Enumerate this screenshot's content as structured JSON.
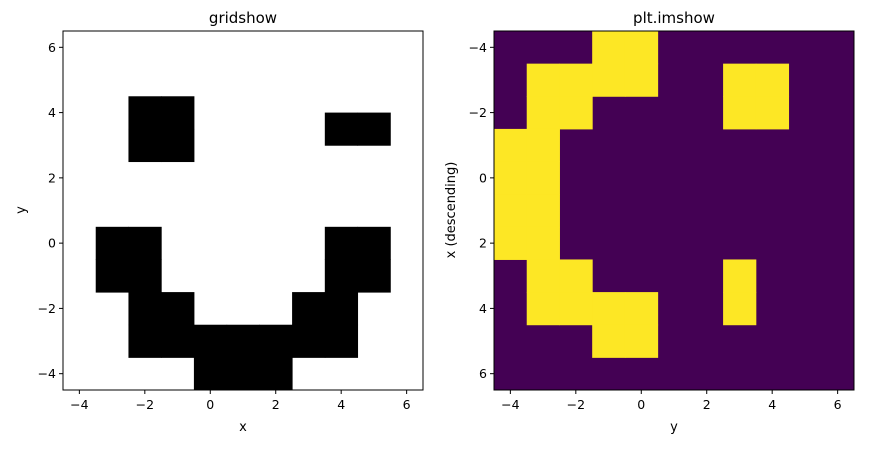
{
  "chart_data": [
    {
      "type": "heatmap",
      "title": "gridshow",
      "xlabel": "x",
      "ylabel": "y",
      "xlim": [
        -4.5,
        6.5
      ],
      "ylim": [
        -4.5,
        6.5
      ],
      "x_ticks": [
        -4,
        -2,
        0,
        2,
        4,
        6
      ],
      "y_ticks": [
        -4,
        -2,
        0,
        2,
        4,
        6
      ],
      "x_tick_labels": [
        "−4",
        "−2",
        "0",
        "2",
        "4",
        "6"
      ],
      "y_tick_labels": [
        "−4",
        "−2",
        "0",
        "2",
        "4",
        "6"
      ],
      "colors": {
        "off": "#ffffff",
        "on": "#000000"
      },
      "filled_cells": [
        [
          -2,
          4
        ],
        [
          -1,
          4
        ],
        [
          -2,
          3
        ],
        [
          -1,
          3
        ],
        [
          4,
          3.5
        ],
        [
          5,
          3.5
        ],
        [
          -3,
          0
        ],
        [
          -2,
          0
        ],
        [
          -3,
          -1
        ],
        [
          -2,
          -1
        ],
        [
          4,
          0
        ],
        [
          5,
          0
        ],
        [
          4,
          -1
        ],
        [
          5,
          -1
        ],
        [
          -2,
          -2
        ],
        [
          -1,
          -2
        ],
        [
          3,
          -2
        ],
        [
          4,
          -2
        ],
        [
          -2,
          -3
        ],
        [
          -1,
          -3
        ],
        [
          3,
          -3
        ],
        [
          4,
          -3
        ],
        [
          0,
          -3
        ],
        [
          1,
          -3
        ],
        [
          2,
          -3
        ],
        [
          0,
          -4
        ],
        [
          1,
          -4
        ],
        [
          2,
          -4
        ]
      ]
    },
    {
      "type": "heatmap",
      "title": "plt.imshow",
      "xlabel": "y",
      "ylabel": "x (descending)",
      "xlim": [
        -4.5,
        6.5
      ],
      "ylim": [
        6.5,
        -4.5
      ],
      "x_ticks": [
        -4,
        -2,
        0,
        2,
        4,
        6
      ],
      "y_ticks": [
        -4,
        -2,
        0,
        2,
        4,
        6
      ],
      "x_tick_labels": [
        "−4",
        "−2",
        "0",
        "2",
        "4",
        "6"
      ],
      "y_tick_labels": [
        "−4",
        "−2",
        "0",
        "2",
        "4",
        "6"
      ],
      "colors": {
        "off": "#440154",
        "on": "#fde725"
      },
      "filled_cells": [
        [
          -1,
          -4
        ],
        [
          0,
          -4
        ],
        [
          -1,
          -3
        ],
        [
          0,
          -3
        ],
        [
          -3,
          -3
        ],
        [
          -2,
          -3
        ],
        [
          -3,
          -2
        ],
        [
          -2,
          -2
        ],
        [
          -4,
          -1
        ],
        [
          -3,
          -1
        ],
        [
          -4,
          0
        ],
        [
          -3,
          0
        ],
        [
          -4,
          1
        ],
        [
          -3,
          1
        ],
        [
          -4,
          2
        ],
        [
          -3,
          2
        ],
        [
          -3,
          3
        ],
        [
          -2,
          3
        ],
        [
          -3,
          4
        ],
        [
          -2,
          4
        ],
        [
          -1,
          4
        ],
        [
          0,
          4
        ],
        [
          -1,
          5
        ],
        [
          0,
          5
        ],
        [
          3,
          -3
        ],
        [
          4,
          -3
        ],
        [
          3,
          -2
        ],
        [
          4,
          -2
        ],
        [
          3,
          3
        ],
        [
          3,
          4
        ]
      ]
    }
  ]
}
